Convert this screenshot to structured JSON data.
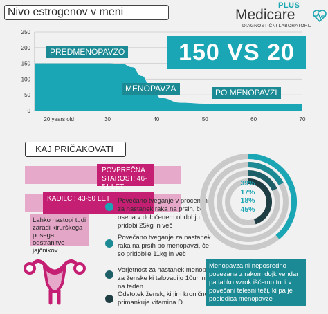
{
  "title": "Nivo estrogenov v meni",
  "logo": {
    "plus": "PLUS",
    "name": "Medicare",
    "subtitle": "DIAGNOSTIČNI LABORATORIJ"
  },
  "colors": {
    "teal": "#1aa6b5",
    "dark_teal": "#1c8a94",
    "magenta": "#c41f73",
    "pink": "#e6a9c9"
  },
  "chart_data": {
    "type": "area",
    "x": [
      20,
      25,
      30,
      33,
      35,
      37,
      39,
      41,
      45,
      50,
      55,
      60,
      65,
      70
    ],
    "x_tick_labels": [
      "20 years old",
      "30",
      "40",
      "50",
      "60",
      "70"
    ],
    "x_ticks": [
      20,
      30,
      40,
      50,
      60,
      70
    ],
    "y": [
      150,
      150,
      150,
      148,
      138,
      110,
      70,
      40,
      25,
      22,
      21,
      20,
      20,
      20
    ],
    "y_ticks": [
      0,
      50,
      100,
      150,
      200,
      250
    ],
    "ylim": [
      0,
      250
    ],
    "xlim": [
      15,
      70
    ],
    "grid": true,
    "stage_labels": [
      "PREDMENOPAVZO",
      "MENOPAVZA",
      "PO MENOPAVZI"
    ]
  },
  "comparison": "150 VS 20",
  "section_title": "KAJ PRIČAKOVATI",
  "bars": [
    {
      "label": "POVPREČNA STAROST: 46-51 LET"
    },
    {
      "label": "KADILCI: 43-50 LET"
    }
  ],
  "note": "Lahko nastopi tudi zaradi kirurškega posega odstranitve jajčnikov",
  "bullets": [
    {
      "text": "Povečano tveganje v procentih za nastanek raka na prsih, če oseba v določenem obdobju pridobi 25kg in več",
      "color": "#1aa6b5"
    },
    {
      "text": "Povečano tveganje za nastanek raka na prsih po menopavzi, če so pridobile 11kg in več",
      "color": "#1c8a94"
    },
    {
      "text": "Verjetnost za nastanek menopavze, za ženske ki telovadijo 10ur in več na teden",
      "color": "#1d5f66"
    },
    {
      "text": "Odstotek žensk, ki jim kronično primankuje vitamina D",
      "color": "#1e3e44"
    }
  ],
  "ring_chart": {
    "type": "radial-bar",
    "values": [
      39,
      17,
      18,
      45
    ],
    "labels": [
      "39%",
      "17%",
      "18%",
      "45%"
    ],
    "unit": "%"
  },
  "menopause_note": "Menopavza ni neposredno povezana z rakom dojk vendar pa lahko vzrok iščemo tudi v povečani telesni teži, ki pa je posledica menopavze"
}
